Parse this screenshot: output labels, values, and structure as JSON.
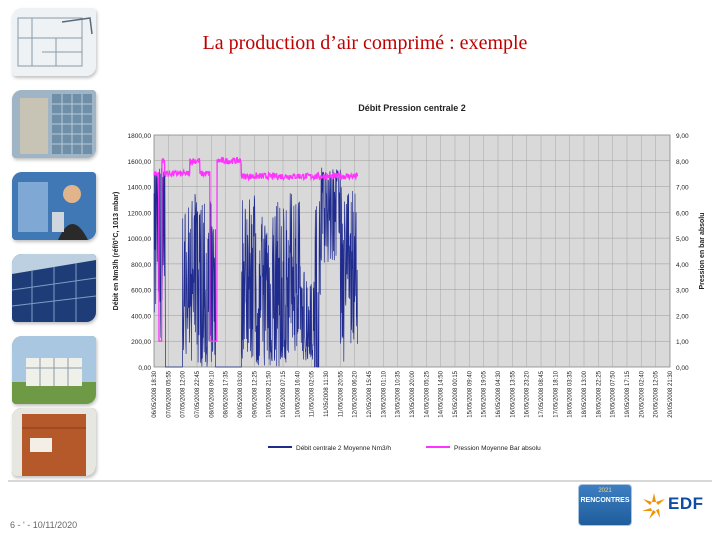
{
  "slide": {
    "title": "La production d’air comprimé : exemple",
    "footer_label": "6 - ' - 10/11/2020"
  },
  "sidebar": {
    "thumbnails": [
      {
        "icon": "architectural-plan-icon"
      },
      {
        "icon": "building-facade-icon"
      },
      {
        "icon": "engineer-at-control-panel-icon"
      },
      {
        "icon": "solar-panels-icon"
      },
      {
        "icon": "modern-building-icon"
      },
      {
        "icon": "rust-wall-facade-icon"
      }
    ]
  },
  "logos": {
    "rencontres_year": "2021",
    "rencontres_name": "RENCONTRES",
    "edf_text": "EDF"
  },
  "colors": {
    "title": "#c00000",
    "debit_series": "#1f2b8f",
    "pression_series": "#ff33ff",
    "plot_area": "#d9d9d9"
  },
  "chart_data": {
    "type": "line",
    "title": "Débit Pression centrale 2",
    "ylabel_left": "Débit en Nm3/h (réf/0°C, 1013 mbar)",
    "ylabel_right": "Pression en bar absolu",
    "ylim_left": [
      0,
      1800
    ],
    "ylim_right": [
      0,
      9
    ],
    "yticks_left": [
      "1800,00",
      "1600,00",
      "1400,00",
      "1200,00",
      "1000,00",
      "800,00",
      "600,00",
      "400,00",
      "200,00",
      "0,00"
    ],
    "yticks_right": [
      "9,00",
      "8,00",
      "7,00",
      "6,00",
      "5,00",
      "4,00",
      "3,00",
      "2,00",
      "1,00",
      "0,00"
    ],
    "x_tick_labels": [
      "06/05/2008 18:30",
      "07/05/2008 05:55",
      "07/05/2008 12:00",
      "07/05/2008 22:45",
      "08/05/2008 09:10",
      "08/05/2008 17:35",
      "09/05/2008 03:00",
      "09/05/2008 12:25",
      "10/05/2008 21:50",
      "10/05/2008 07:15",
      "10/05/2008 16:40",
      "11/05/2008 02:05",
      "11/05/2008 11:30",
      "11/05/2008 20:55",
      "12/05/2008 06:20",
      "12/05/2008 15:45",
      "13/05/2008 01:10",
      "13/05/2008 10:35",
      "13/05/2008 20:00",
      "14/05/2008 05:25",
      "14/05/2008 14:50",
      "15/05/2008 00:15",
      "15/05/2008 09:40",
      "15/05/2008 19:05",
      "16/05/2008 04:30",
      "16/05/2008 13:55",
      "16/05/2008 23:20",
      "17/05/2008 08:45",
      "17/05/2008 18:10",
      "18/05/2008 03:35",
      "18/05/2008 13:00",
      "18/05/2008 22:25",
      "19/05/2008 07:50",
      "19/05/2008 17:15",
      "20/05/2008 02:40",
      "20/05/2008 12:05",
      "20/05/2008 21:30"
    ],
    "grid": true,
    "legend_position": "bottom",
    "series": [
      {
        "name": "Débit centrale 2 Moyenne Nm3/h",
        "axis": "left",
        "color": "#1f2b8f",
        "segments": [
          {
            "from": 0,
            "to": 0.8,
            "base": 1450,
            "low": 150,
            "high": 1550
          },
          {
            "from": 0.8,
            "to": 2.0,
            "base": 0,
            "low": 0,
            "high": 0
          },
          {
            "from": 2.0,
            "to": 2.6,
            "base": 500,
            "low": 100,
            "high": 1300
          },
          {
            "from": 2.6,
            "to": 3.2,
            "base": 1050,
            "low": 0,
            "high": 1350
          },
          {
            "from": 3.2,
            "to": 4.3,
            "base": 500,
            "low": 0,
            "high": 1300
          },
          {
            "from": 4.3,
            "to": 6.1,
            "base": 0,
            "low": 0,
            "high": 0
          },
          {
            "from": 6.1,
            "to": 7.1,
            "base": 800,
            "low": 50,
            "high": 1350
          },
          {
            "from": 7.1,
            "to": 8.1,
            "base": 500,
            "low": 0,
            "high": 1200
          },
          {
            "from": 8.1,
            "to": 9.2,
            "base": 250,
            "low": 0,
            "high": 1300
          },
          {
            "from": 9.2,
            "to": 10.2,
            "base": 800,
            "low": 100,
            "high": 1350
          },
          {
            "from": 10.2,
            "to": 11.2,
            "base": 300,
            "low": 50,
            "high": 800
          },
          {
            "from": 11.2,
            "to": 11.6,
            "base": 0,
            "low": 0,
            "high": 1500
          },
          {
            "from": 11.6,
            "to": 13.0,
            "base": 1450,
            "low": 800,
            "high": 1550
          },
          {
            "from": 13.0,
            "to": 14.2,
            "base": 1000,
            "low": 0,
            "high": 1400
          }
        ]
      },
      {
        "name": "Pression Moyenne Bar absolu",
        "axis": "right",
        "color": "#ff33ff",
        "segments": [
          {
            "from": 0,
            "to": 0.35,
            "value": 7.5
          },
          {
            "from": 0.35,
            "to": 0.55,
            "value": 1.0
          },
          {
            "from": 0.55,
            "to": 0.75,
            "value": 8.0
          },
          {
            "from": 0.75,
            "to": 2.5,
            "value": 7.5
          },
          {
            "from": 2.5,
            "to": 3.2,
            "value": 8.0
          },
          {
            "from": 3.2,
            "to": 3.9,
            "value": 7.5
          },
          {
            "from": 3.9,
            "to": 4.4,
            "value": 1.0
          },
          {
            "from": 4.4,
            "to": 6.1,
            "value": 8.0
          },
          {
            "from": 6.1,
            "to": 14.2,
            "value": 7.4
          }
        ]
      }
    ]
  }
}
